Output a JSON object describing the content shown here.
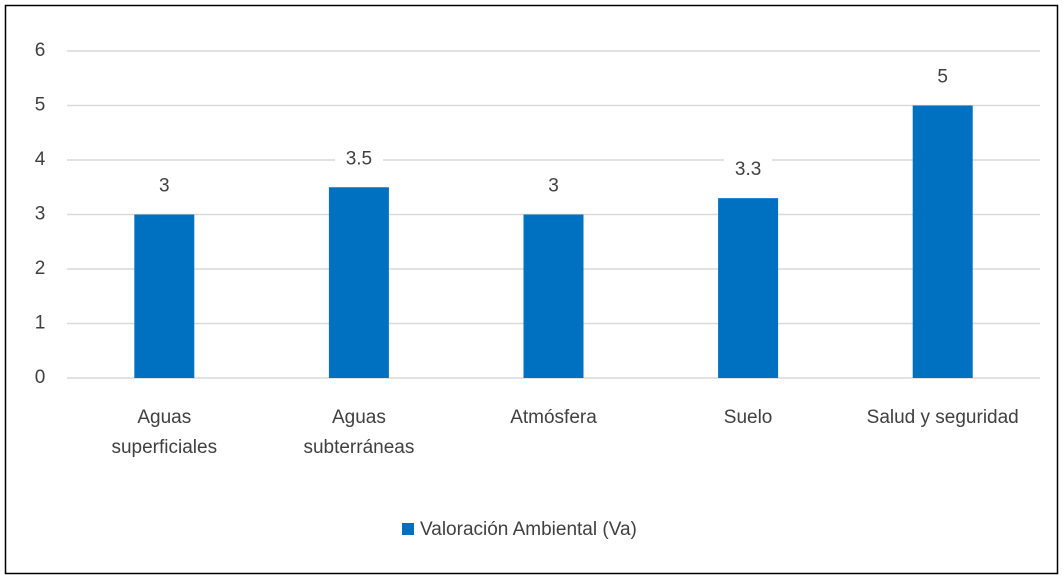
{
  "chart_data": {
    "type": "bar",
    "categories": [
      [
        "Aguas",
        "superficiales"
      ],
      [
        "Aguas",
        "subterráneas"
      ],
      [
        "Atmósfera"
      ],
      [
        "Suelo"
      ],
      [
        "Salud y seguridad"
      ]
    ],
    "series": [
      {
        "name": "Valoración Ambiental (Va)",
        "color": "#0070c0",
        "values": [
          3,
          3.5,
          3,
          3.3,
          5
        ]
      }
    ],
    "ylim": [
      0,
      6
    ],
    "yticks": [
      0,
      1,
      2,
      3,
      4,
      5,
      6
    ],
    "grid": true,
    "data_labels": true,
    "legend": "bottom"
  }
}
